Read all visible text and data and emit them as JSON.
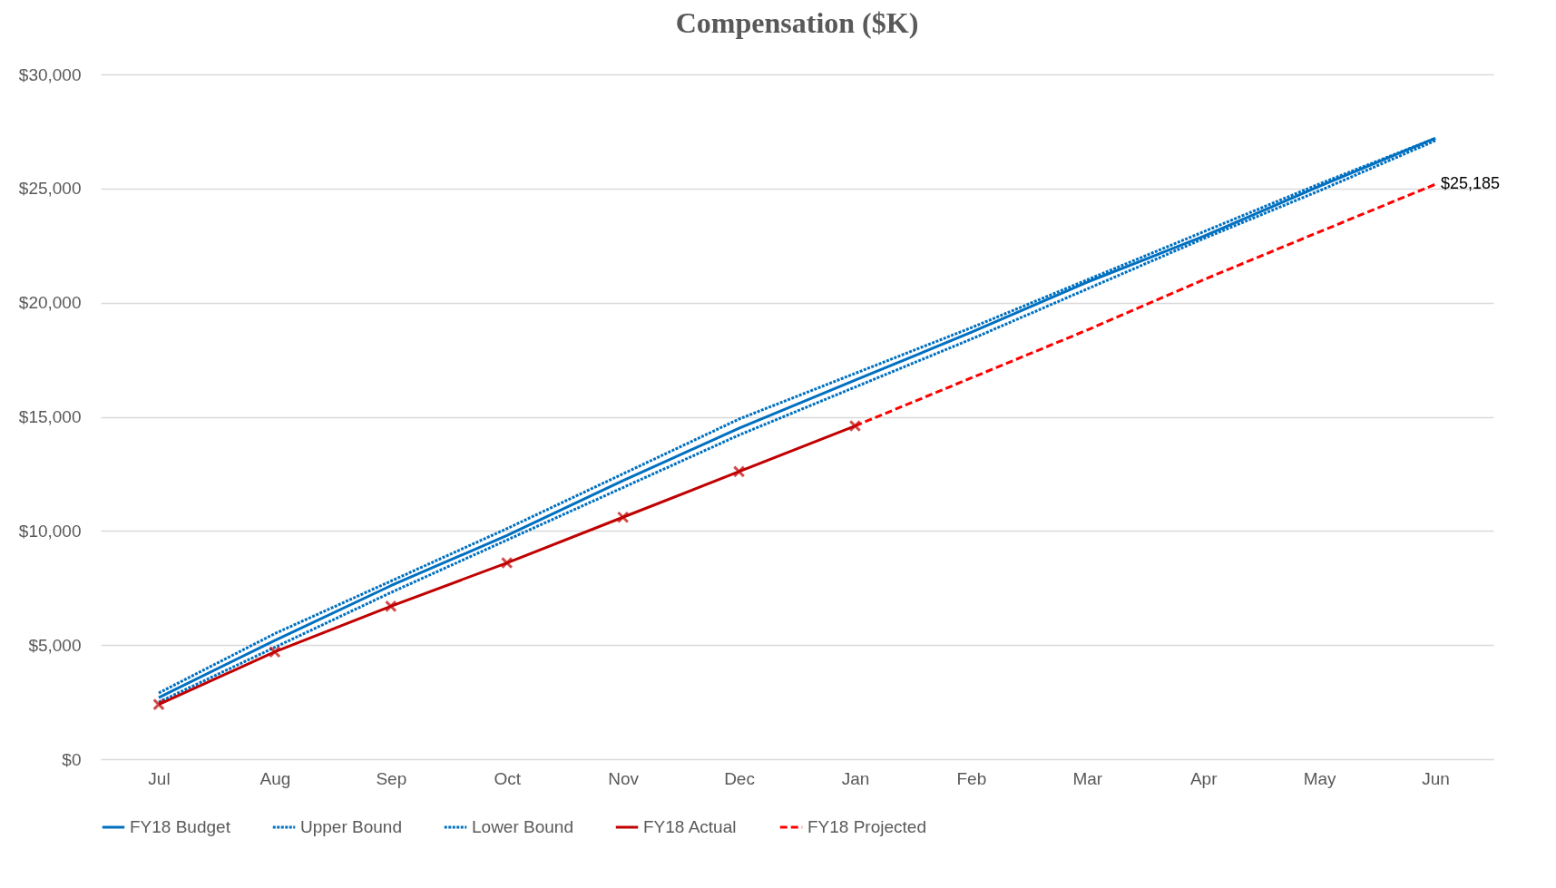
{
  "chart_data": {
    "type": "line",
    "title": "Compensation ($K)",
    "categories": [
      "Jul",
      "Aug",
      "Sep",
      "Oct",
      "Nov",
      "Dec",
      "Jan",
      "Feb",
      "Mar",
      "Apr",
      "May",
      "Jun"
    ],
    "series": [
      {
        "name": "FY18 Budget",
        "color": "#0070c0",
        "line_style": "solid",
        "marker": "none",
        "values": [
          2700,
          5200,
          7600,
          9800,
          12200,
          14500,
          16600,
          18700,
          20900,
          22900,
          25100,
          27200
        ]
      },
      {
        "name": "Upper Bound",
        "color": "#0070c0",
        "line_style": "dotted",
        "marker": "none",
        "values": [
          2900,
          5500,
          7800,
          10100,
          12500,
          14900,
          16900,
          18900,
          21000,
          23100,
          25200,
          27200
        ]
      },
      {
        "name": "Lower Bound",
        "color": "#0070c0",
        "line_style": "dotted",
        "marker": "none",
        "values": [
          2500,
          4900,
          7300,
          9600,
          11900,
          14200,
          16300,
          18400,
          20600,
          22800,
          24900,
          27100
        ]
      },
      {
        "name": "FY18 Actual",
        "color": "#c00000",
        "line_style": "solid",
        "marker": "cross",
        "values": [
          2400,
          4700,
          6700,
          8600,
          10600,
          12600,
          14600,
          null,
          null,
          null,
          null,
          null
        ]
      },
      {
        "name": "FY18 Projected",
        "color": "#ff0000",
        "line_style": "dashed",
        "marker": "none",
        "values": [
          null,
          null,
          null,
          null,
          null,
          null,
          14600,
          16700,
          18800,
          21000,
          23100,
          25185
        ]
      }
    ],
    "ylim": [
      0,
      30000
    ],
    "yticks": [
      {
        "value": 0,
        "label": "$0"
      },
      {
        "value": 5000,
        "label": "$5,000"
      },
      {
        "value": 10000,
        "label": "$10,000"
      },
      {
        "value": 15000,
        "label": "$15,000"
      },
      {
        "value": 20000,
        "label": "$20,000"
      },
      {
        "value": 25000,
        "label": "$25,000"
      },
      {
        "value": 30000,
        "label": "$30,000"
      }
    ],
    "annotations": [
      {
        "text": "$25,185",
        "x": "Jun",
        "y": 25185
      }
    ],
    "grid": "y",
    "legend": "bottom"
  }
}
